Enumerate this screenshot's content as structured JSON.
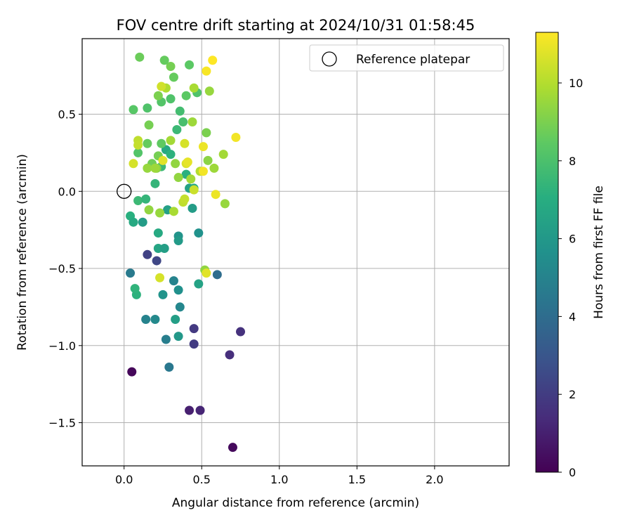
{
  "chart_data": {
    "type": "scatter",
    "title": "FOV centre drift starting at 2024/10/31 01:58:45",
    "xlabel": "Angular distance from reference (arcmin)",
    "ylabel": "Rotation from reference (arcmin)",
    "xlim": [
      -0.27,
      2.48
    ],
    "ylim": [
      -1.78,
      0.99
    ],
    "x_ticks": [
      0.0,
      0.5,
      1.0,
      1.5,
      2.0
    ],
    "x_tick_labels": [
      "0.0",
      "0.5",
      "1.0",
      "1.5",
      "2.0"
    ],
    "y_ticks": [
      0.5,
      0.0,
      -0.5,
      -1.0,
      -1.5
    ],
    "y_tick_labels": [
      "0.5",
      "0.0",
      "−0.5",
      "−1.0",
      "−1.5"
    ],
    "grid": true,
    "legend": {
      "placement": "top-right",
      "entries": [
        "Reference platepar"
      ]
    },
    "reference_point": {
      "x": 0.0,
      "y": 0.0,
      "marker": "open-circle"
    },
    "colorbar": {
      "label": "Hours from first FF file",
      "colormap": "viridis",
      "range": [
        0,
        11.3
      ],
      "ticks": [
        0,
        2,
        4,
        6,
        8,
        10
      ],
      "tick_labels": [
        "0",
        "2",
        "4",
        "6",
        "8",
        "10"
      ]
    },
    "points": [
      [
        0.05,
        -1.17,
        0.2
      ],
      [
        0.42,
        -1.42,
        1.0
      ],
      [
        0.49,
        -1.42,
        1.2
      ],
      [
        0.7,
        -1.66,
        0.3
      ],
      [
        0.68,
        -1.06,
        1.5
      ],
      [
        0.75,
        -0.91,
        1.6
      ],
      [
        0.45,
        -0.89,
        1.9
      ],
      [
        0.45,
        -0.99,
        2.0
      ],
      [
        0.15,
        -0.41,
        2.2
      ],
      [
        0.21,
        -0.45,
        2.4
      ],
      [
        0.6,
        -0.54,
        4.0
      ],
      [
        0.04,
        -0.53,
        4.6
      ],
      [
        0.29,
        -1.14,
        4.5
      ],
      [
        0.27,
        -0.96,
        4.8
      ],
      [
        0.14,
        -0.83,
        5.0
      ],
      [
        0.2,
        -0.83,
        5.3
      ],
      [
        0.36,
        -0.75,
        5.2
      ],
      [
        0.32,
        -0.58,
        5.0
      ],
      [
        0.25,
        -0.67,
        5.8
      ],
      [
        0.35,
        -0.64,
        5.6
      ],
      [
        0.35,
        -0.94,
        6.0
      ],
      [
        0.33,
        -0.83,
        6.3
      ],
      [
        0.48,
        -0.6,
        6.5
      ],
      [
        0.08,
        -0.67,
        7.2
      ],
      [
        0.07,
        -0.63,
        7.3
      ],
      [
        0.04,
        -0.16,
        7.1
      ],
      [
        0.06,
        -0.2,
        6.8
      ],
      [
        0.12,
        -0.2,
        6.2
      ],
      [
        0.22,
        -0.37,
        6.6
      ],
      [
        0.26,
        -0.37,
        6.3
      ],
      [
        0.22,
        -0.27,
        6.8
      ],
      [
        0.35,
        -0.29,
        5.8
      ],
      [
        0.35,
        -0.32,
        6.1
      ],
      [
        0.48,
        -0.27,
        5.7
      ],
      [
        0.44,
        -0.11,
        6.2
      ],
      [
        0.28,
        -0.12,
        6.4
      ],
      [
        0.09,
        -0.06,
        7.6
      ],
      [
        0.14,
        -0.05,
        7.4
      ],
      [
        0.2,
        0.05,
        7.4
      ],
      [
        0.4,
        0.11,
        7.1
      ],
      [
        0.42,
        0.02,
        6.5
      ],
      [
        0.45,
        0.02,
        6.7
      ],
      [
        0.24,
        0.16,
        7.6
      ],
      [
        0.27,
        0.27,
        6.8
      ],
      [
        0.3,
        0.24,
        7.2
      ],
      [
        0.34,
        0.4,
        7.6
      ],
      [
        0.38,
        0.45,
        7.9
      ],
      [
        0.36,
        0.52,
        7.8
      ],
      [
        0.24,
        0.58,
        8.2
      ],
      [
        0.3,
        0.6,
        8.1
      ],
      [
        0.15,
        0.54,
        8.1
      ],
      [
        0.06,
        0.53,
        8.3
      ],
      [
        0.4,
        0.62,
        8.4
      ],
      [
        0.47,
        0.64,
        8.1
      ],
      [
        0.32,
        0.74,
        8.6
      ],
      [
        0.42,
        0.82,
        8.4
      ],
      [
        0.3,
        0.81,
        8.9
      ],
      [
        0.26,
        0.85,
        8.6
      ],
      [
        0.1,
        0.87,
        8.7
      ],
      [
        0.22,
        0.62,
        9.0
      ],
      [
        0.16,
        0.43,
        8.9
      ],
      [
        0.09,
        0.25,
        8.2
      ],
      [
        0.15,
        0.31,
        8.6
      ],
      [
        0.24,
        0.31,
        8.5
      ],
      [
        0.18,
        0.18,
        8.8
      ],
      [
        0.22,
        0.23,
        8.9
      ],
      [
        0.15,
        0.15,
        9.5
      ],
      [
        0.21,
        0.15,
        9.2
      ],
      [
        0.35,
        0.09,
        9.4
      ],
      [
        0.53,
        0.38,
        9.0
      ],
      [
        0.54,
        0.2,
        9.3
      ],
      [
        0.44,
        0.45,
        9.6
      ],
      [
        0.55,
        0.65,
        9.5
      ],
      [
        0.45,
        0.67,
        9.8
      ],
      [
        0.27,
        0.67,
        9.9
      ],
      [
        0.3,
        0.33,
        9.7
      ],
      [
        0.2,
        0.15,
        9.6
      ],
      [
        0.33,
        0.18,
        9.4
      ],
      [
        0.43,
        0.08,
        9.7
      ],
      [
        0.16,
        -0.12,
        9.4
      ],
      [
        0.23,
        -0.14,
        9.5
      ],
      [
        0.32,
        -0.13,
        9.8
      ],
      [
        0.38,
        -0.07,
        10.2
      ],
      [
        0.39,
        -0.05,
        10.3
      ],
      [
        0.45,
        0.01,
        10.4
      ],
      [
        0.49,
        0.13,
        10.0
      ],
      [
        0.58,
        0.15,
        9.6
      ],
      [
        0.64,
        0.24,
        9.7
      ],
      [
        0.65,
        -0.08,
        9.5
      ],
      [
        0.23,
        -0.56,
        10.6
      ],
      [
        0.52,
        -0.51,
        9.4
      ],
      [
        0.53,
        -0.53,
        10.8
      ],
      [
        0.09,
        0.33,
        10.2
      ],
      [
        0.09,
        0.3,
        10.3
      ],
      [
        0.06,
        0.18,
        10.6
      ],
      [
        0.25,
        0.2,
        10.8
      ],
      [
        0.24,
        0.68,
        10.5
      ],
      [
        0.39,
        0.31,
        10.6
      ],
      [
        0.4,
        0.18,
        10.7
      ],
      [
        0.41,
        0.19,
        10.9
      ],
      [
        0.51,
        0.29,
        11.0
      ],
      [
        0.51,
        0.13,
        11.1
      ],
      [
        0.59,
        -0.02,
        11.0
      ],
      [
        0.72,
        0.35,
        11.1
      ],
      [
        0.53,
        0.78,
        11.2
      ],
      [
        0.57,
        0.85,
        11.3
      ]
    ]
  }
}
